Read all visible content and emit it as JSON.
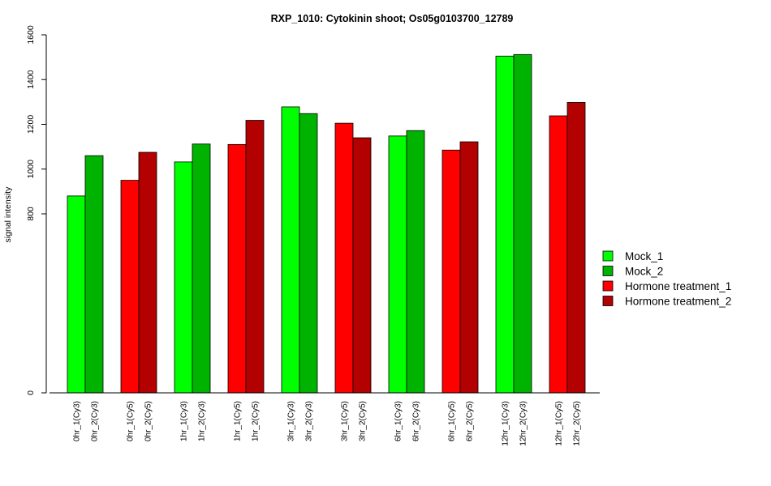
{
  "chart_data": {
    "type": "bar",
    "title": "RXP_1010: Cytokinin shoot; Os05g0103700_12789",
    "xlabel": "",
    "ylabel": "signal intensity",
    "ylim": [
      0,
      1600
    ],
    "yticks": [
      "0",
      "800",
      "1000",
      "1200",
      "1400",
      "1600"
    ],
    "grid": false,
    "legend_position": "right",
    "legend": [
      {
        "label": "Mock_1",
        "color": "#00ff00"
      },
      {
        "label": "Mock_2",
        "color": "#00b300"
      },
      {
        "label": "Hormone treatment_1",
        "color": "#ff0000"
      },
      {
        "label": "Hormone treatment_2",
        "color": "#b30000"
      }
    ],
    "groups": [
      {
        "bars": [
          {
            "label": "0hr_1(Cy3)",
            "value": 880,
            "color": "#00ff00"
          },
          {
            "label": "0hr_2(Cy3)",
            "value": 1060,
            "color": "#00b300"
          }
        ]
      },
      {
        "bars": [
          {
            "label": "0hr_1(Cy5)",
            "value": 950,
            "color": "#ff0000"
          },
          {
            "label": "0hr_2(Cy5)",
            "value": 1075,
            "color": "#b30000"
          }
        ]
      },
      {
        "bars": [
          {
            "label": "1hr_1(Cy3)",
            "value": 1032,
            "color": "#00ff00"
          },
          {
            "label": "1hr_2(Cy3)",
            "value": 1112,
            "color": "#00b300"
          }
        ]
      },
      {
        "bars": [
          {
            "label": "1hr_1(Cy5)",
            "value": 1110,
            "color": "#ff0000"
          },
          {
            "label": "1hr_2(Cy5)",
            "value": 1218,
            "color": "#b30000"
          }
        ]
      },
      {
        "bars": [
          {
            "label": "3hr_1(Cy3)",
            "value": 1278,
            "color": "#00ff00"
          },
          {
            "label": "3hr_2(Cy3)",
            "value": 1248,
            "color": "#00b300"
          }
        ]
      },
      {
        "bars": [
          {
            "label": "3hr_1(Cy5)",
            "value": 1205,
            "color": "#ff0000"
          },
          {
            "label": "3hr_2(Cy5)",
            "value": 1140,
            "color": "#b30000"
          }
        ]
      },
      {
        "bars": [
          {
            "label": "6hr_1(Cy3)",
            "value": 1148,
            "color": "#00ff00"
          },
          {
            "label": "6hr_2(Cy3)",
            "value": 1172,
            "color": "#00b300"
          }
        ]
      },
      {
        "bars": [
          {
            "label": "6hr_1(Cy5)",
            "value": 1085,
            "color": "#ff0000"
          },
          {
            "label": "6hr_2(Cy5)",
            "value": 1122,
            "color": "#b30000"
          }
        ]
      },
      {
        "bars": [
          {
            "label": "12hr_1(Cy3)",
            "value": 1505,
            "color": "#00ff00"
          },
          {
            "label": "12hr_2(Cy3)",
            "value": 1512,
            "color": "#00b300"
          }
        ]
      },
      {
        "bars": [
          {
            "label": "12hr_1(Cy5)",
            "value": 1238,
            "color": "#ff0000"
          },
          {
            "label": "12hr_2(Cy5)",
            "value": 1298,
            "color": "#b30000"
          }
        ]
      }
    ]
  }
}
